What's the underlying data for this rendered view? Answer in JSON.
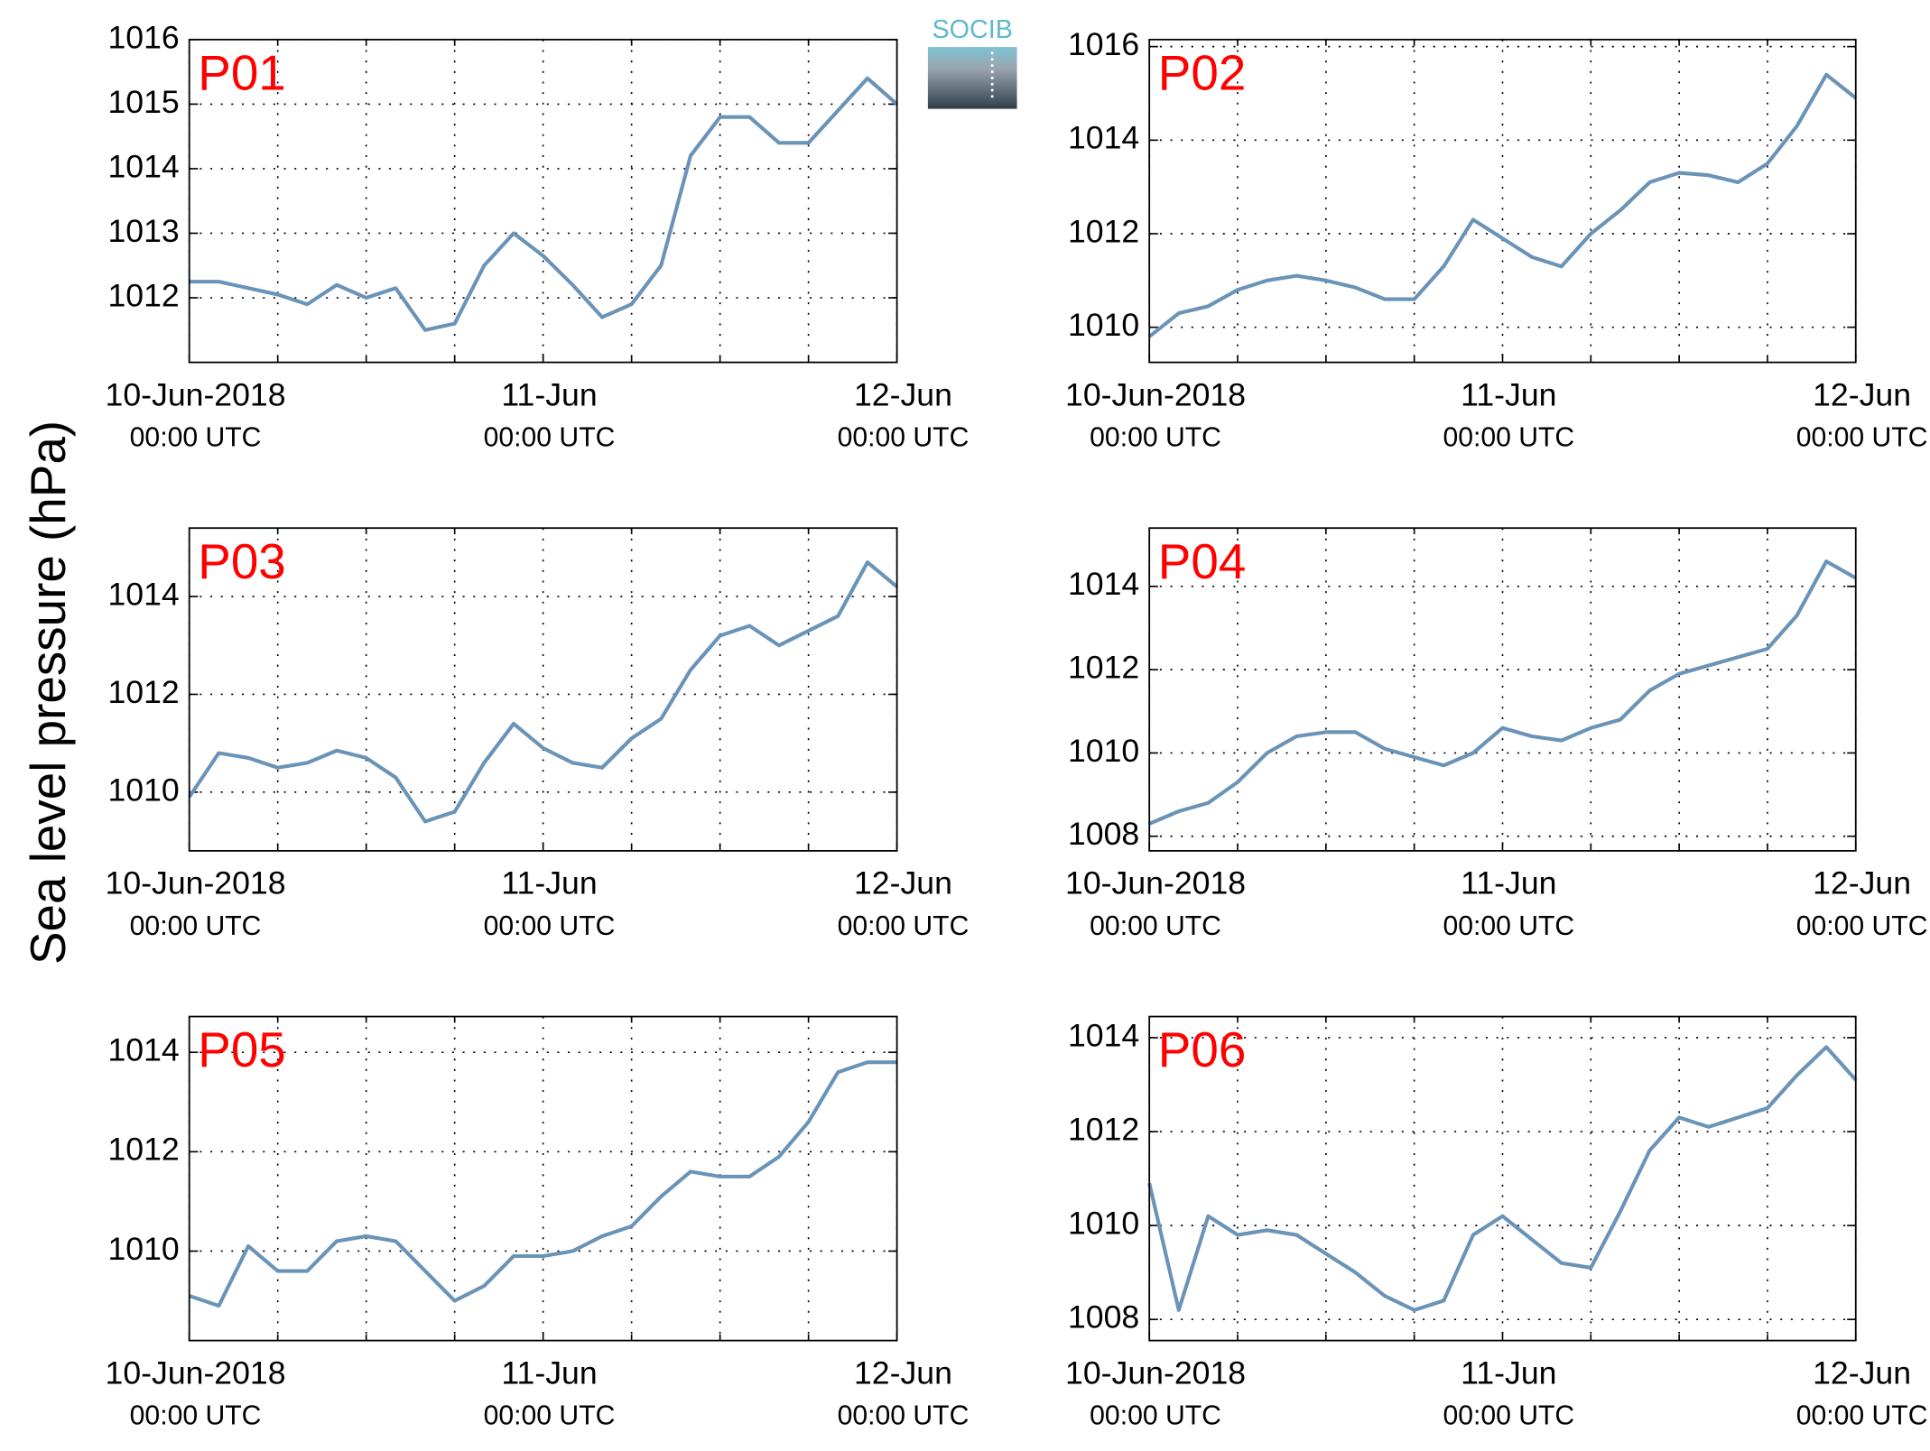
{
  "logo": "SOCIB",
  "ylabel": "Sea level pressure (hPa)",
  "chart_data": [
    {
      "type": "line",
      "title": "P01",
      "x": [
        0,
        2,
        4,
        6,
        8,
        10,
        12,
        14,
        16,
        18,
        20,
        22,
        24,
        26,
        28,
        30,
        32,
        34,
        36,
        38,
        40,
        42,
        44,
        46,
        48
      ],
      "series": [
        {
          "name": "P01",
          "color": "#6a93b8",
          "values": [
            1012.25,
            1012.25,
            1012.15,
            1012.05,
            1011.9,
            1012.2,
            1012.0,
            1012.15,
            1011.5,
            1011.6,
            1012.5,
            1013.0,
            1012.65,
            1012.2,
            1011.7,
            1011.9,
            1012.5,
            1014.2,
            1014.8,
            1014.8,
            1014.4,
            1014.4,
            1014.9,
            1015.4,
            1015.0
          ]
        }
      ],
      "xlim": [
        0,
        48
      ],
      "xticks": [
        {
          "value": 0,
          "label": "10-Jun-2018",
          "sublabel": "00:00 UTC"
        },
        {
          "value": 24,
          "label": "11-Jun",
          "sublabel": "00:00 UTC"
        },
        {
          "value": 48,
          "label": "12-Jun",
          "sublabel": "00:00 UTC"
        }
      ],
      "xminorticks": [
        6,
        12,
        18,
        30,
        36,
        42
      ],
      "ylim": [
        1011.0,
        1016.0
      ],
      "yticks": [
        1012,
        1013,
        1014,
        1015,
        1016
      ],
      "grid": true
    },
    {
      "type": "line",
      "title": "P02",
      "x": [
        0,
        2,
        4,
        6,
        8,
        10,
        12,
        14,
        16,
        18,
        20,
        22,
        24,
        26,
        28,
        30,
        32,
        34,
        36,
        38,
        40,
        42,
        44,
        46,
        48
      ],
      "series": [
        {
          "name": "P02",
          "color": "#6a93b8",
          "values": [
            1009.8,
            1010.3,
            1010.45,
            1010.8,
            1011.0,
            1011.1,
            1011.0,
            1010.85,
            1010.6,
            1010.6,
            1011.3,
            1012.3,
            1011.9,
            1011.5,
            1011.3,
            1012.0,
            1012.5,
            1013.1,
            1013.3,
            1013.25,
            1013.1,
            1013.5,
            1014.3,
            1015.4,
            1014.9
          ]
        }
      ],
      "xlim": [
        0,
        48
      ],
      "xticks": [
        {
          "value": 0,
          "label": "10-Jun-2018",
          "sublabel": "00:00 UTC"
        },
        {
          "value": 24,
          "label": "11-Jun",
          "sublabel": "00:00 UTC"
        },
        {
          "value": 48,
          "label": "12-Jun",
          "sublabel": "00:00 UTC"
        }
      ],
      "xminorticks": [
        6,
        12,
        18,
        30,
        36,
        42
      ],
      "ylim": [
        1009.25,
        1016.15
      ],
      "yticks": [
        1010,
        1012,
        1014,
        1016
      ],
      "grid": true
    },
    {
      "type": "line",
      "title": "P03",
      "x": [
        0,
        2,
        4,
        6,
        8,
        10,
        12,
        14,
        16,
        18,
        20,
        22,
        24,
        26,
        28,
        30,
        32,
        34,
        36,
        38,
        40,
        42,
        44,
        46,
        48
      ],
      "series": [
        {
          "name": "P03",
          "color": "#6a93b8",
          "values": [
            1009.9,
            1010.8,
            1010.7,
            1010.5,
            1010.6,
            1010.85,
            1010.7,
            1010.3,
            1009.4,
            1009.6,
            1010.6,
            1011.4,
            1010.9,
            1010.6,
            1010.5,
            1011.1,
            1011.5,
            1012.5,
            1013.2,
            1013.4,
            1013.0,
            1013.3,
            1013.6,
            1014.7,
            1014.2
          ]
        }
      ],
      "xlim": [
        0,
        48
      ],
      "xticks": [
        {
          "value": 0,
          "label": "10-Jun-2018",
          "sublabel": "00:00 UTC"
        },
        {
          "value": 24,
          "label": "11-Jun",
          "sublabel": "00:00 UTC"
        },
        {
          "value": 48,
          "label": "12-Jun",
          "sublabel": "00:00 UTC"
        }
      ],
      "xminorticks": [
        6,
        12,
        18,
        30,
        36,
        42
      ],
      "ylim": [
        1008.8,
        1015.4
      ],
      "yticks": [
        1010,
        1012,
        1014
      ],
      "grid": true
    },
    {
      "type": "line",
      "title": "P04",
      "x": [
        0,
        2,
        4,
        6,
        8,
        10,
        12,
        14,
        16,
        18,
        20,
        22,
        24,
        26,
        28,
        30,
        32,
        34,
        36,
        38,
        40,
        42,
        44,
        46,
        48
      ],
      "series": [
        {
          "name": "P04",
          "color": "#6a93b8",
          "values": [
            1008.3,
            1008.6,
            1008.8,
            1009.3,
            1010.0,
            1010.4,
            1010.5,
            1010.5,
            1010.1,
            1009.9,
            1009.7,
            1010.0,
            1010.6,
            1010.4,
            1010.3,
            1010.6,
            1010.8,
            1011.5,
            1011.9,
            1012.1,
            1012.3,
            1012.5,
            1013.3,
            1014.6,
            1014.2
          ]
        }
      ],
      "xlim": [
        0,
        48
      ],
      "xticks": [
        {
          "value": 0,
          "label": "10-Jun-2018",
          "sublabel": "00:00 UTC"
        },
        {
          "value": 24,
          "label": "11-Jun",
          "sublabel": "00:00 UTC"
        },
        {
          "value": 48,
          "label": "12-Jun",
          "sublabel": "00:00 UTC"
        }
      ],
      "xminorticks": [
        6,
        12,
        18,
        30,
        36,
        42
      ],
      "ylim": [
        1007.65,
        1015.4
      ],
      "yticks": [
        1008,
        1010,
        1012,
        1014
      ],
      "grid": true
    },
    {
      "type": "line",
      "title": "P05",
      "x": [
        0,
        2,
        4,
        6,
        8,
        10,
        12,
        14,
        16,
        18,
        20,
        22,
        24,
        26,
        28,
        30,
        32,
        34,
        36,
        38,
        40,
        42,
        44,
        46,
        48
      ],
      "series": [
        {
          "name": "P05",
          "color": "#6a93b8",
          "values": [
            1009.1,
            1008.9,
            1010.1,
            1009.6,
            1009.6,
            1010.2,
            1010.3,
            1010.2,
            1009.6,
            1009.0,
            1009.3,
            1009.9,
            1009.9,
            1010.0,
            1010.3,
            1010.5,
            1011.1,
            1011.6,
            1011.5,
            1011.5,
            1011.9,
            1012.6,
            1013.6,
            1013.8,
            1013.8
          ]
        }
      ],
      "xlim": [
        0,
        48
      ],
      "xticks": [
        {
          "value": 0,
          "label": "10-Jun-2018",
          "sublabel": "00:00 UTC"
        },
        {
          "value": 24,
          "label": "11-Jun",
          "sublabel": "00:00 UTC"
        },
        {
          "value": 48,
          "label": "12-Jun",
          "sublabel": "00:00 UTC"
        }
      ],
      "xminorticks": [
        6,
        12,
        18,
        30,
        36,
        42
      ],
      "ylim": [
        1008.2,
        1014.72
      ],
      "yticks": [
        1010,
        1012,
        1014
      ],
      "grid": true
    },
    {
      "type": "line",
      "title": "P06",
      "x": [
        0,
        2,
        4,
        6,
        8,
        10,
        12,
        14,
        16,
        18,
        20,
        22,
        24,
        26,
        28,
        30,
        32,
        34,
        36,
        38,
        40,
        42,
        44,
        46,
        48
      ],
      "series": [
        {
          "name": "P06",
          "color": "#6a93b8",
          "values": [
            1010.9,
            1008.2,
            1010.2,
            1009.8,
            1009.9,
            1009.8,
            1009.4,
            1009.0,
            1008.5,
            1008.2,
            1008.4,
            1009.8,
            1010.2,
            1009.7,
            1009.2,
            1009.1,
            1010.3,
            1011.6,
            1012.3,
            1012.1,
            1012.3,
            1012.5,
            1013.2,
            1013.8,
            1013.1
          ]
        }
      ],
      "xlim": [
        0,
        48
      ],
      "xticks": [
        {
          "value": 0,
          "label": "10-Jun-2018",
          "sublabel": "00:00 UTC"
        },
        {
          "value": 24,
          "label": "11-Jun",
          "sublabel": "00:00 UTC"
        },
        {
          "value": 48,
          "label": "12-Jun",
          "sublabel": "00:00 UTC"
        }
      ],
      "xminorticks": [
        6,
        12,
        18,
        30,
        36,
        42
      ],
      "ylim": [
        1007.55,
        1014.45
      ],
      "yticks": [
        1008,
        1010,
        1012,
        1014
      ],
      "grid": true
    }
  ]
}
